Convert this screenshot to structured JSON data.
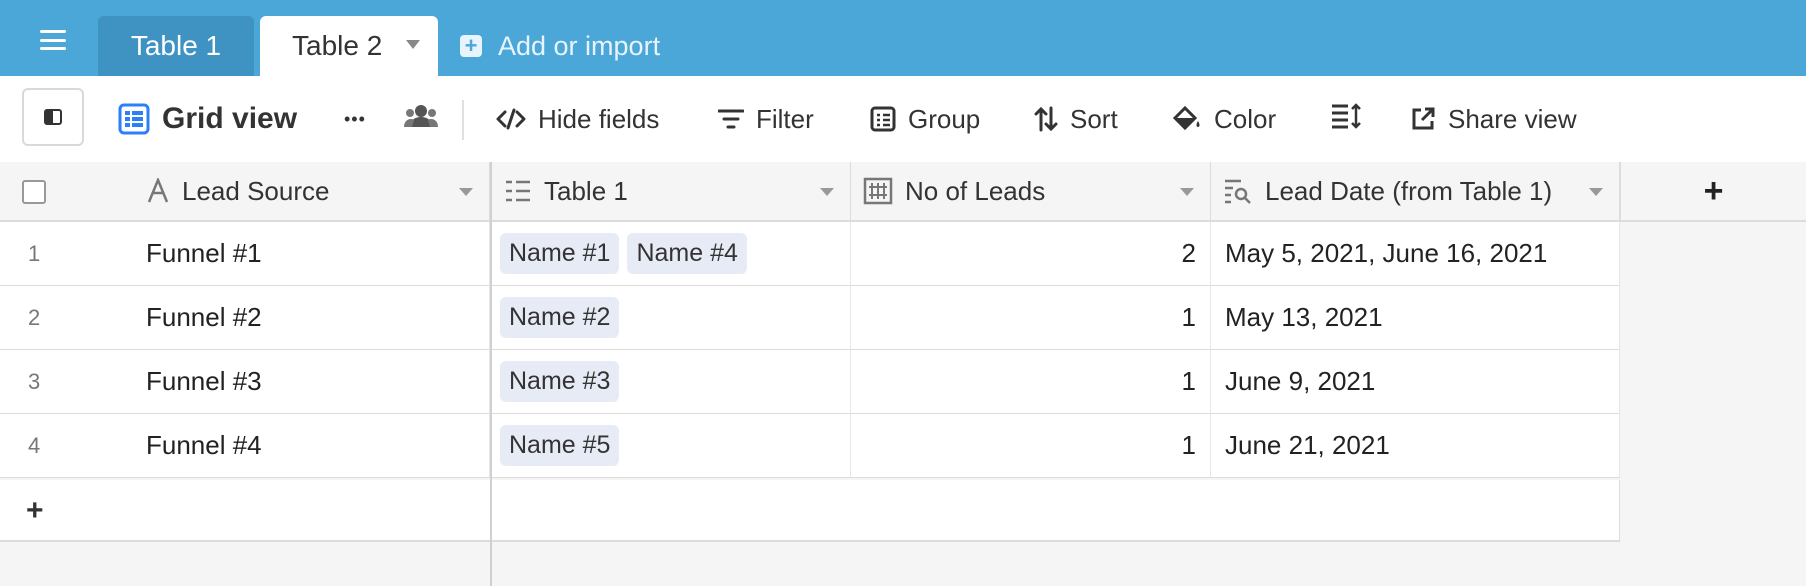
{
  "tabs": {
    "table1": "Table 1",
    "table2": "Table 2",
    "add_import": "Add or import"
  },
  "toolbar": {
    "view_name": "Grid view",
    "more": "•••",
    "hide_fields": "Hide fields",
    "filter": "Filter",
    "group": "Group",
    "sort": "Sort",
    "color": "Color",
    "share_view": "Share view"
  },
  "columns": {
    "lead_source": "Lead Source",
    "table1": "Table 1",
    "no_of_leads": "No of Leads",
    "lead_date": "Lead Date (from Table 1)"
  },
  "rows": [
    {
      "num": "1",
      "source": "Funnel #1",
      "links": [
        "Name #1",
        "Name #4"
      ],
      "leads": "2",
      "date": "May 5, 2021, June 16, 2021"
    },
    {
      "num": "2",
      "source": "Funnel #2",
      "links": [
        "Name #2"
      ],
      "leads": "1",
      "date": "May 13, 2021"
    },
    {
      "num": "3",
      "source": "Funnel #3",
      "links": [
        "Name #3"
      ],
      "leads": "1",
      "date": "June 9, 2021"
    },
    {
      "num": "4",
      "source": "Funnel #4",
      "links": [
        "Name #5"
      ],
      "leads": "1",
      "date": "June 21, 2021"
    }
  ],
  "add_symbol": "+",
  "colors": {
    "header_blue": "#4aa7d7",
    "inactive_tab": "#3f93c2",
    "grid_icon_blue": "#2d7ff9",
    "chip_bg": "#e6ebf5"
  }
}
